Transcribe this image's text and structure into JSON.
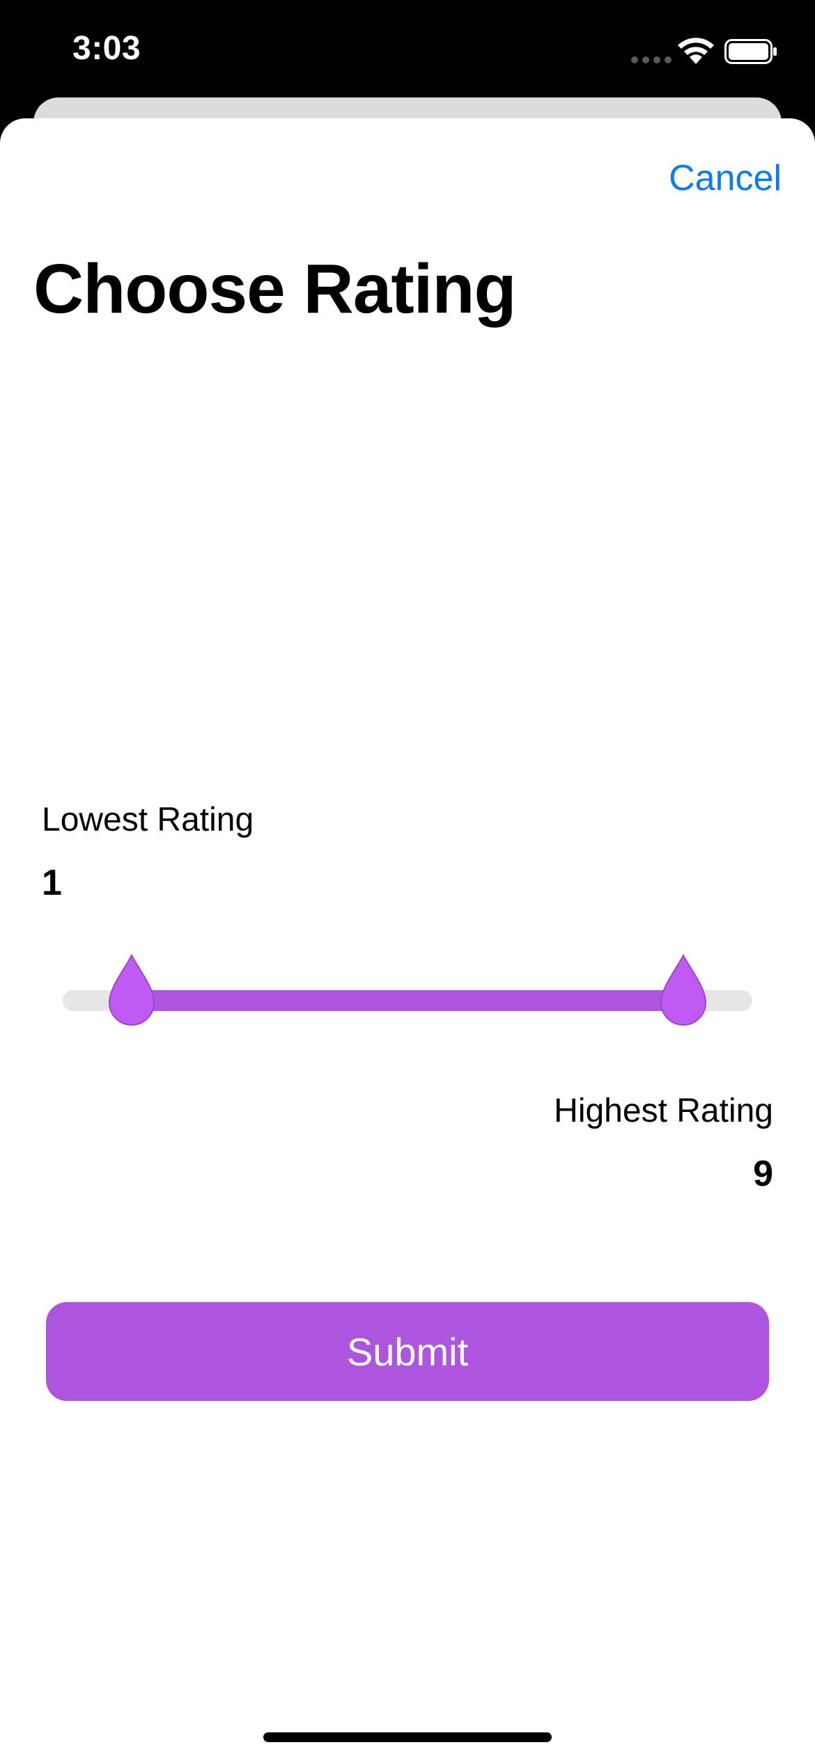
{
  "status_bar": {
    "time": "3:03",
    "signal_icon": "cellular-dots-icon",
    "wifi_icon": "wifi-icon",
    "battery_icon": "battery-full-icon"
  },
  "sheet": {
    "cancel_label": "Cancel",
    "title": "Choose Rating"
  },
  "rating": {
    "lowest_label": "Lowest Rating",
    "lowest_value": "1",
    "highest_label": "Highest Rating",
    "highest_value": "9",
    "slider_min": 0,
    "slider_max": 10,
    "thumb_icon": "droplet-thumb-icon"
  },
  "submit_label": "Submit",
  "colors": {
    "accent": "#ad55df",
    "thumb": "#bf5af2",
    "link": "#0a7bf2",
    "track": "#e6e6e6"
  }
}
